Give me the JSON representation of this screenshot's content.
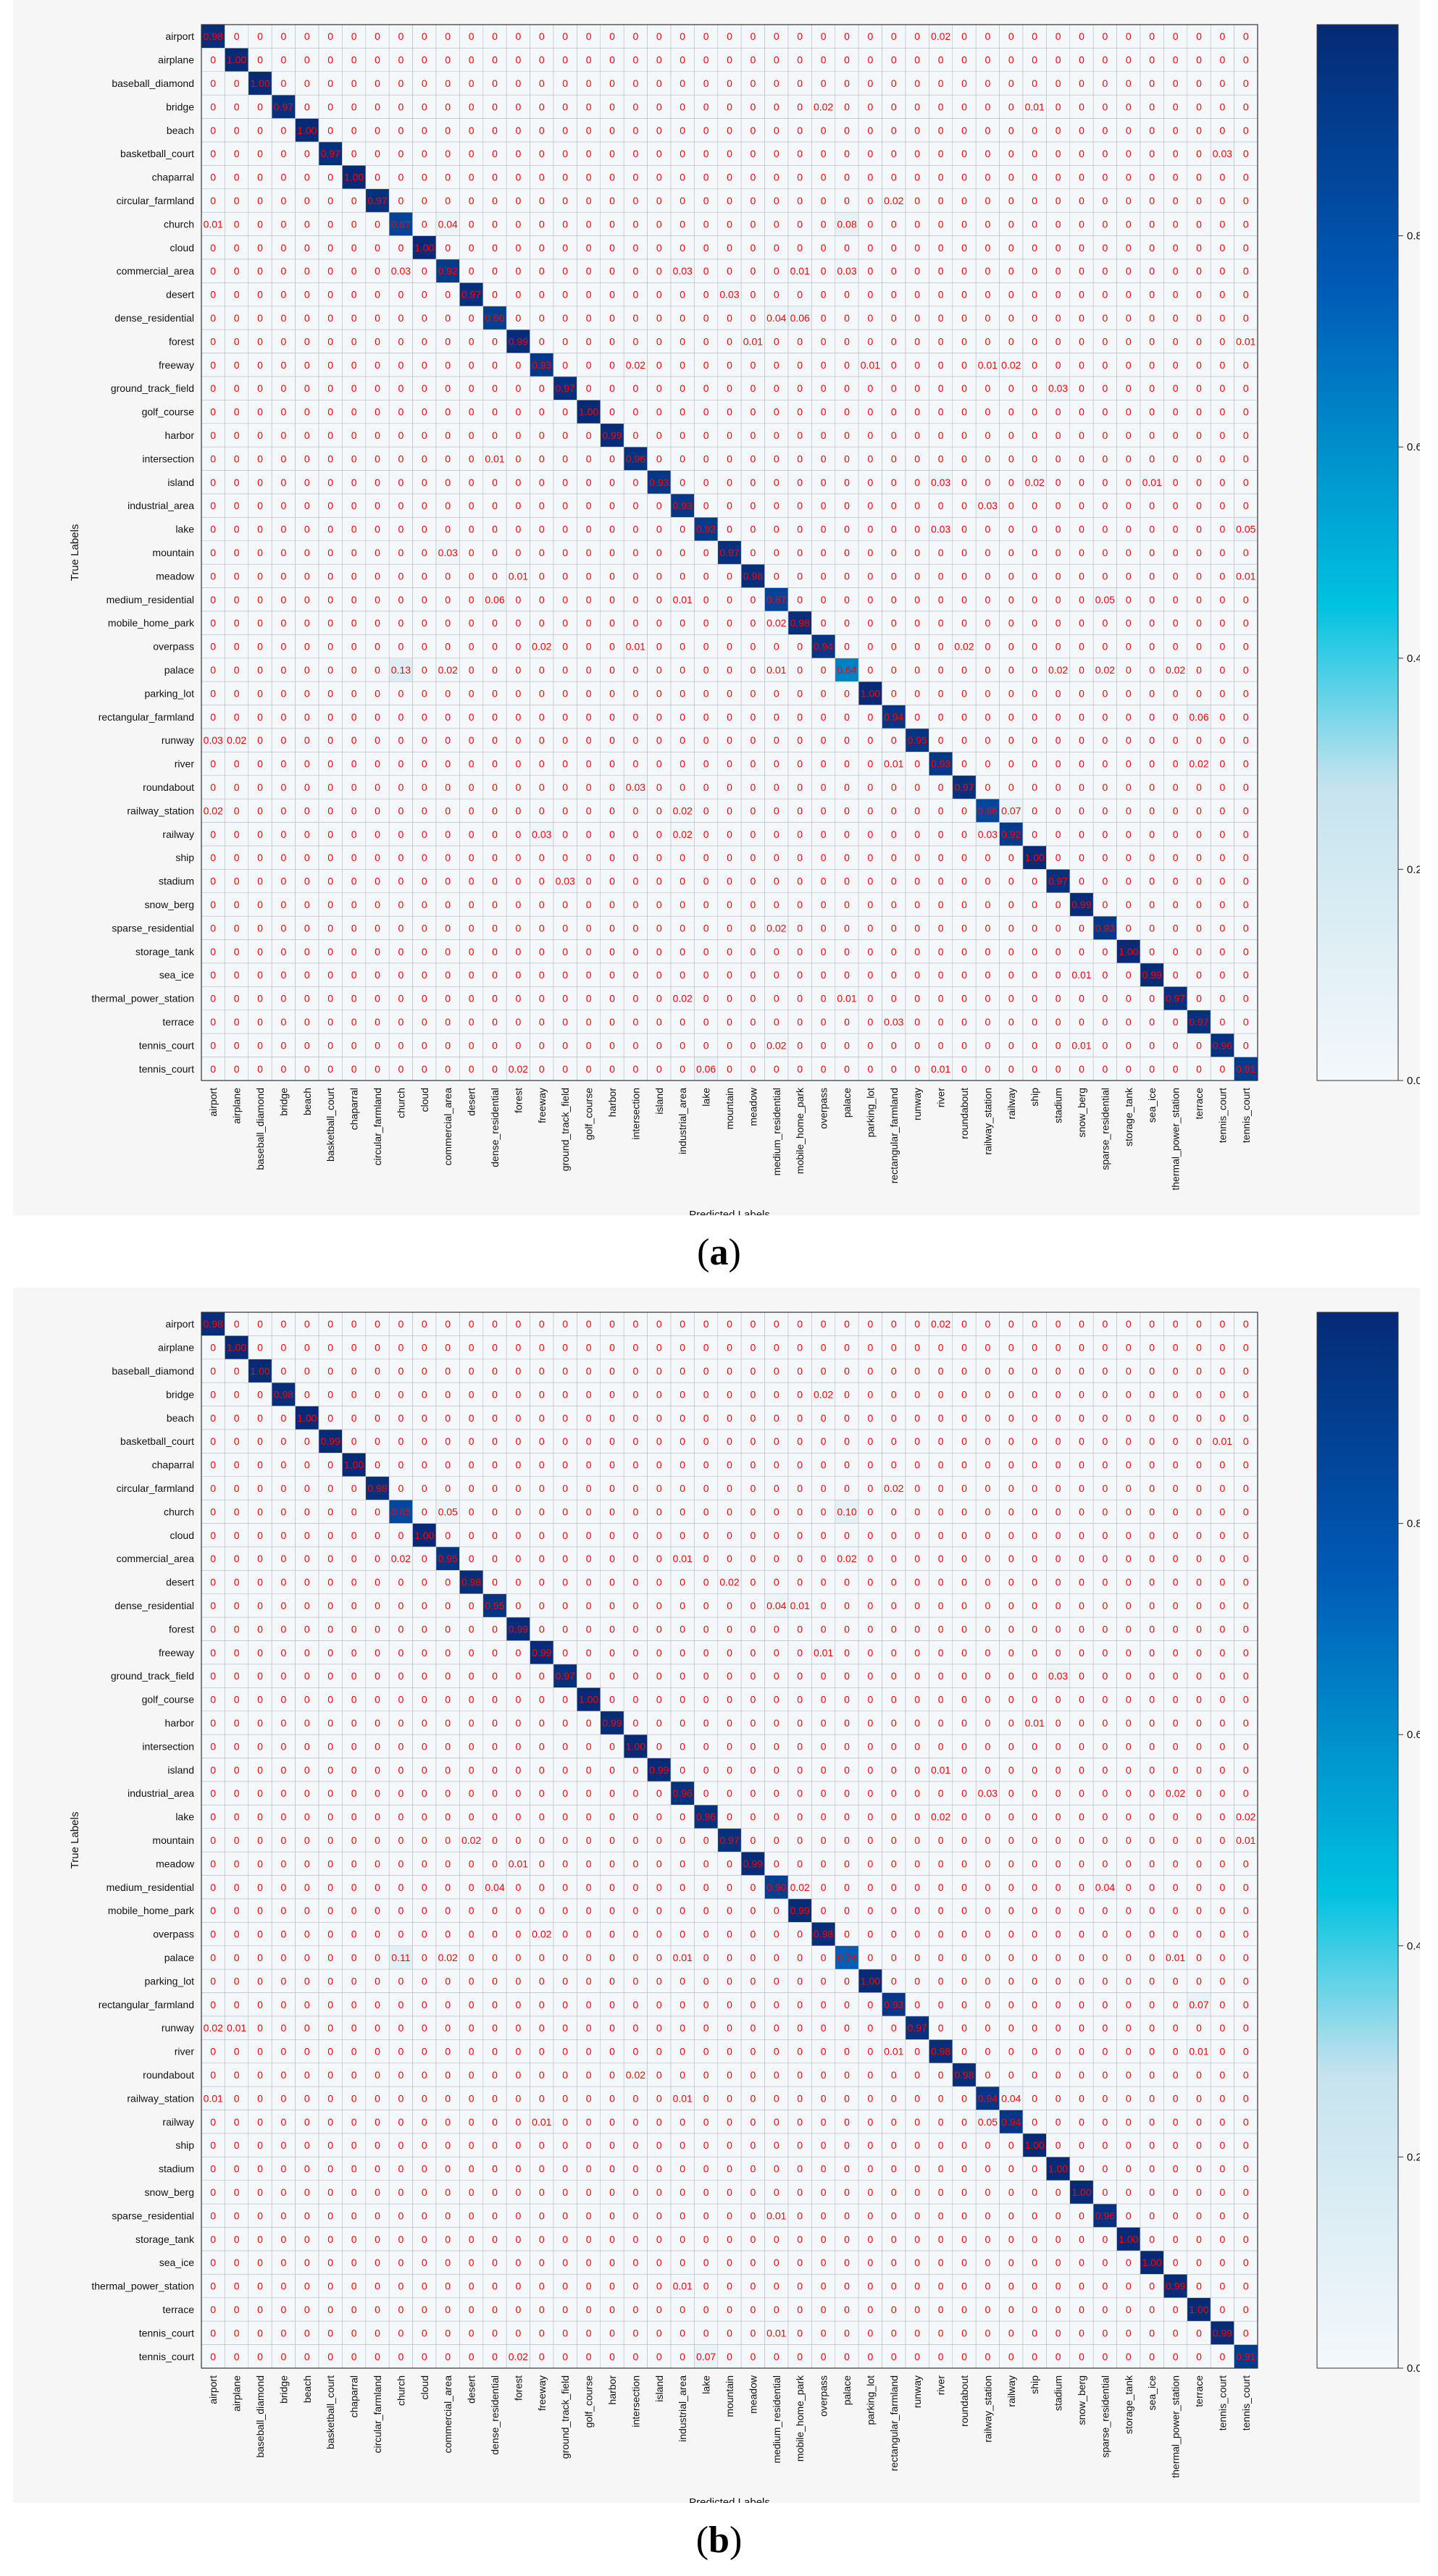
{
  "figure": {
    "panels": [
      {
        "caption_prefix": "(",
        "caption_letter": "a",
        "caption_suffix": ")"
      },
      {
        "caption_prefix": "(",
        "caption_letter": "b",
        "caption_suffix": ")"
      }
    ]
  },
  "colors": {
    "colormap": [
      "#f4f8fb",
      "#c6e3ee",
      "#00c2e0",
      "#005bb6",
      "#062a75"
    ],
    "annotation_text": "#ff0000",
    "grid": "#bbbbbb"
  },
  "chart_data": [
    {
      "type": "heatmap",
      "title": "",
      "xlabel": "Predicted Labels",
      "ylabel": "True Labels",
      "colorbar_ticks": [
        0.0,
        0.2,
        0.4,
        0.6,
        0.8
      ],
      "colorbar_tick_labels": [
        "0.0",
        "0.2",
        "0.4",
        "0.6",
        "0.8"
      ],
      "color_range": [
        0,
        1
      ],
      "labels": [
        "airport",
        "airplane",
        "baseball_diamond",
        "bridge",
        "beach",
        "basketball_court",
        "chaparral",
        "circular_farmland",
        "church",
        "cloud",
        "commercial_area",
        "desert",
        "dense_residential",
        "forest",
        "freeway",
        "ground_track_field",
        "golf_course",
        "harbor",
        "intersection",
        "island",
        "industrial_area",
        "lake",
        "mountain",
        "meadow",
        "medium_residential",
        "mobile_home_park",
        "overpass",
        "palace",
        "parking_lot",
        "rectangular_farmland",
        "runway",
        "river",
        "roundabout",
        "railway_station",
        "railway",
        "ship",
        "stadium",
        "snow_berg",
        "sparse_residential",
        "storage_tank",
        "sea_ice",
        "thermal_power_station",
        "terrace",
        "tennis_court",
        "tennis_court"
      ],
      "diagonal": [
        0.98,
        1.0,
        1.0,
        0.97,
        1.0,
        0.97,
        1.0,
        0.97,
        0.87,
        1.0,
        0.92,
        0.97,
        0.9,
        0.99,
        0.93,
        0.97,
        1.0,
        0.99,
        0.96,
        0.93,
        0.93,
        0.92,
        0.97,
        0.98,
        0.87,
        0.98,
        0.94,
        0.64,
        1.0,
        0.94,
        0.95,
        0.93,
        0.97,
        0.86,
        0.92,
        1.0,
        0.97,
        0.99,
        0.93,
        1.0,
        0.99,
        0.97,
        0.97,
        0.96,
        0.91
      ],
      "off_diagonal": [
        {
          "row": 0,
          "col": 31,
          "value": 0.02
        },
        {
          "row": 3,
          "col": 26,
          "value": 0.02
        },
        {
          "row": 3,
          "col": 35,
          "value": 0.01
        },
        {
          "row": 5,
          "col": 43,
          "value": 0.03
        },
        {
          "row": 7,
          "col": 29,
          "value": 0.02
        },
        {
          "row": 8,
          "col": 0,
          "value": 0.01
        },
        {
          "row": 8,
          "col": 10,
          "value": 0.04
        },
        {
          "row": 8,
          "col": 27,
          "value": 0.08
        },
        {
          "row": 10,
          "col": 8,
          "value": 0.03
        },
        {
          "row": 10,
          "col": 20,
          "value": 0.03
        },
        {
          "row": 10,
          "col": 25,
          "value": 0.01
        },
        {
          "row": 10,
          "col": 27,
          "value": 0.03
        },
        {
          "row": 11,
          "col": 22,
          "value": 0.03
        },
        {
          "row": 12,
          "col": 24,
          "value": 0.04
        },
        {
          "row": 12,
          "col": 25,
          "value": 0.06
        },
        {
          "row": 13,
          "col": 23,
          "value": 0.01
        },
        {
          "row": 13,
          "col": 44,
          "value": 0.01
        },
        {
          "row": 14,
          "col": 18,
          "value": 0.02
        },
        {
          "row": 14,
          "col": 28,
          "value": 0.01
        },
        {
          "row": 14,
          "col": 33,
          "value": 0.01
        },
        {
          "row": 14,
          "col": 34,
          "value": 0.02
        },
        {
          "row": 15,
          "col": 36,
          "value": 0.03
        },
        {
          "row": 17,
          "col": 0,
          "value": 0.0
        },
        {
          "row": 18,
          "col": 12,
          "value": 0.01
        },
        {
          "row": 19,
          "col": 31,
          "value": 0.03
        },
        {
          "row": 19,
          "col": 35,
          "value": 0.02
        },
        {
          "row": 19,
          "col": 40,
          "value": 0.01
        },
        {
          "row": 20,
          "col": 33,
          "value": 0.03
        },
        {
          "row": 21,
          "col": 31,
          "value": 0.03
        },
        {
          "row": 21,
          "col": 44,
          "value": 0.05
        },
        {
          "row": 22,
          "col": 10,
          "value": 0.03
        },
        {
          "row": 23,
          "col": 13,
          "value": 0.01
        },
        {
          "row": 23,
          "col": 44,
          "value": 0.01
        },
        {
          "row": 24,
          "col": 12,
          "value": 0.06
        },
        {
          "row": 24,
          "col": 20,
          "value": 0.01
        },
        {
          "row": 24,
          "col": 38,
          "value": 0.05
        },
        {
          "row": 25,
          "col": 24,
          "value": 0.02
        },
        {
          "row": 26,
          "col": 14,
          "value": 0.02
        },
        {
          "row": 26,
          "col": 18,
          "value": 0.01
        },
        {
          "row": 26,
          "col": 32,
          "value": 0.02
        },
        {
          "row": 27,
          "col": 8,
          "value": 0.13
        },
        {
          "row": 27,
          "col": 10,
          "value": 0.02
        },
        {
          "row": 27,
          "col": 24,
          "value": 0.01
        },
        {
          "row": 27,
          "col": 36,
          "value": 0.02
        },
        {
          "row": 27,
          "col": 38,
          "value": 0.02
        },
        {
          "row": 27,
          "col": 41,
          "value": 0.02
        },
        {
          "row": 29,
          "col": 42,
          "value": 0.06
        },
        {
          "row": 30,
          "col": 0,
          "value": 0.03
        },
        {
          "row": 30,
          "col": 1,
          "value": 0.02
        },
        {
          "row": 31,
          "col": 29,
          "value": 0.01
        },
        {
          "row": 31,
          "col": 42,
          "value": 0.02
        },
        {
          "row": 32,
          "col": 18,
          "value": 0.03
        },
        {
          "row": 33,
          "col": 0,
          "value": 0.02
        },
        {
          "row": 33,
          "col": 20,
          "value": 0.02
        },
        {
          "row": 33,
          "col": 34,
          "value": 0.07
        },
        {
          "row": 34,
          "col": 14,
          "value": 0.03
        },
        {
          "row": 34,
          "col": 20,
          "value": 0.02
        },
        {
          "row": 34,
          "col": 33,
          "value": 0.03
        },
        {
          "row": 36,
          "col": 15,
          "value": 0.03
        },
        {
          "row": 38,
          "col": 24,
          "value": 0.02
        },
        {
          "row": 40,
          "col": 37,
          "value": 0.01
        },
        {
          "row": 41,
          "col": 20,
          "value": 0.02
        },
        {
          "row": 41,
          "col": 27,
          "value": 0.01
        },
        {
          "row": 42,
          "col": 29,
          "value": 0.03
        },
        {
          "row": 43,
          "col": 24,
          "value": 0.02
        },
        {
          "row": 43,
          "col": 37,
          "value": 0.01
        },
        {
          "row": 44,
          "col": 13,
          "value": 0.02
        },
        {
          "row": 44,
          "col": 21,
          "value": 0.06
        },
        {
          "row": 44,
          "col": 31,
          "value": 0.01
        }
      ]
    },
    {
      "type": "heatmap",
      "title": "",
      "xlabel": "Predicted Labels",
      "ylabel": "True Labels",
      "colorbar_ticks": [
        0.0,
        0.2,
        0.4,
        0.6,
        0.8
      ],
      "colorbar_tick_labels": [
        "0.0",
        "0.2",
        "0.4",
        "0.6",
        "0.8"
      ],
      "color_range": [
        0,
        1
      ],
      "labels": [
        "airport",
        "airplane",
        "baseball_diamond",
        "bridge",
        "beach",
        "basketball_court",
        "chaparral",
        "circular_farmland",
        "church",
        "cloud",
        "commercial_area",
        "desert",
        "dense_residential",
        "forest",
        "freeway",
        "ground_track_field",
        "golf_course",
        "harbor",
        "intersection",
        "island",
        "industrial_area",
        "lake",
        "mountain",
        "meadow",
        "medium_residential",
        "mobile_home_park",
        "overpass",
        "palace",
        "parking_lot",
        "rectangular_farmland",
        "runway",
        "river",
        "roundabout",
        "railway_station",
        "railway",
        "ship",
        "stadium",
        "snow_berg",
        "sparse_residential",
        "storage_tank",
        "sea_ice",
        "thermal_power_station",
        "terrace",
        "tennis_court",
        "tennis_court"
      ],
      "diagonal": [
        0.98,
        1.0,
        1.0,
        0.98,
        1.0,
        0.99,
        1.0,
        0.98,
        0.85,
        1.0,
        0.95,
        0.98,
        0.95,
        0.99,
        0.99,
        0.97,
        1.0,
        0.99,
        1.0,
        0.99,
        0.96,
        0.96,
        0.97,
        0.99,
        0.9,
        0.99,
        0.98,
        0.74,
        1.0,
        0.93,
        0.97,
        0.98,
        0.98,
        0.94,
        0.94,
        1.0,
        1.0,
        1.0,
        0.96,
        1.0,
        1.0,
        0.99,
        1.0,
        0.99,
        0.91
      ],
      "off_diagonal": [
        {
          "row": 0,
          "col": 31,
          "value": 0.02
        },
        {
          "row": 3,
          "col": 26,
          "value": 0.02
        },
        {
          "row": 5,
          "col": 43,
          "value": 0.01
        },
        {
          "row": 7,
          "col": 29,
          "value": 0.02
        },
        {
          "row": 8,
          "col": 10,
          "value": 0.05
        },
        {
          "row": 8,
          "col": 27,
          "value": 0.1
        },
        {
          "row": 10,
          "col": 8,
          "value": 0.02
        },
        {
          "row": 10,
          "col": 20,
          "value": 0.01
        },
        {
          "row": 10,
          "col": 27,
          "value": 0.02
        },
        {
          "row": 11,
          "col": 22,
          "value": 0.02
        },
        {
          "row": 12,
          "col": 24,
          "value": 0.04
        },
        {
          "row": 12,
          "col": 25,
          "value": 0.01
        },
        {
          "row": 14,
          "col": 26,
          "value": 0.01
        },
        {
          "row": 15,
          "col": 36,
          "value": 0.03
        },
        {
          "row": 17,
          "col": 35,
          "value": 0.01
        },
        {
          "row": 19,
          "col": 31,
          "value": 0.01
        },
        {
          "row": 20,
          "col": 33,
          "value": 0.03
        },
        {
          "row": 20,
          "col": 41,
          "value": 0.02
        },
        {
          "row": 21,
          "col": 31,
          "value": 0.02
        },
        {
          "row": 21,
          "col": 44,
          "value": 0.02
        },
        {
          "row": 22,
          "col": 11,
          "value": 0.02
        },
        {
          "row": 22,
          "col": 44,
          "value": 0.01
        },
        {
          "row": 23,
          "col": 13,
          "value": 0.01
        },
        {
          "row": 24,
          "col": 12,
          "value": 0.04
        },
        {
          "row": 24,
          "col": 25,
          "value": 0.02
        },
        {
          "row": 24,
          "col": 38,
          "value": 0.04
        },
        {
          "row": 26,
          "col": 14,
          "value": 0.02
        },
        {
          "row": 27,
          "col": 8,
          "value": 0.11
        },
        {
          "row": 27,
          "col": 10,
          "value": 0.02
        },
        {
          "row": 27,
          "col": 20,
          "value": 0.01
        },
        {
          "row": 27,
          "col": 41,
          "value": 0.01
        },
        {
          "row": 29,
          "col": 42,
          "value": 0.07
        },
        {
          "row": 30,
          "col": 0,
          "value": 0.02
        },
        {
          "row": 30,
          "col": 1,
          "value": 0.01
        },
        {
          "row": 31,
          "col": 29,
          "value": 0.01
        },
        {
          "row": 31,
          "col": 42,
          "value": 0.01
        },
        {
          "row": 32,
          "col": 18,
          "value": 0.02
        },
        {
          "row": 33,
          "col": 0,
          "value": 0.01
        },
        {
          "row": 33,
          "col": 20,
          "value": 0.01
        },
        {
          "row": 33,
          "col": 34,
          "value": 0.04
        },
        {
          "row": 34,
          "col": 14,
          "value": 0.01
        },
        {
          "row": 34,
          "col": 33,
          "value": 0.05
        },
        {
          "row": 38,
          "col": 24,
          "value": 0.01
        },
        {
          "row": 41,
          "col": 20,
          "value": 0.01
        },
        {
          "row": 43,
          "col": 24,
          "value": 0.01
        },
        {
          "row": 44,
          "col": 13,
          "value": 0.02
        },
        {
          "row": 44,
          "col": 21,
          "value": 0.07
        }
      ]
    }
  ]
}
